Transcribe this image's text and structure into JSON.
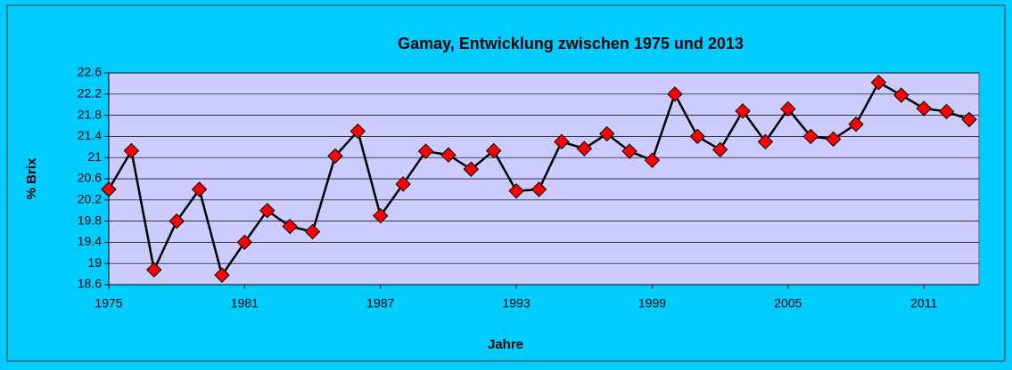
{
  "chart_data": {
    "type": "line",
    "title": "Gamay, Entwicklung zwischen 1975 und 2013",
    "x_label": "Jahre",
    "y_label": "% Brix",
    "x": [
      1975,
      1976,
      1977,
      1978,
      1979,
      1980,
      1981,
      1982,
      1983,
      1984,
      1985,
      1986,
      1987,
      1988,
      1989,
      1990,
      1991,
      1992,
      1993,
      1994,
      1995,
      1996,
      1997,
      1998,
      1999,
      2000,
      2001,
      2002,
      2003,
      2004,
      2005,
      2006,
      2007,
      2008,
      2009,
      2010,
      2011,
      2012,
      2013
    ],
    "series": [
      {
        "name": "Gamay",
        "color": "#000000",
        "marker_color": "#ff0000",
        "values": [
          20.4,
          21.13,
          18.88,
          19.8,
          20.4,
          18.78,
          19.4,
          20.0,
          19.7,
          19.6,
          21.03,
          21.5,
          19.9,
          20.5,
          21.12,
          21.05,
          20.78,
          21.13,
          20.37,
          20.4,
          21.3,
          21.17,
          21.45,
          21.12,
          20.95,
          22.2,
          21.4,
          21.15,
          21.88,
          21.3,
          21.92,
          21.4,
          21.35,
          21.63,
          22.42,
          22.18,
          21.93,
          21.87,
          21.72
        ]
      }
    ],
    "xlim": [
      1975,
      2013
    ],
    "xticks": [
      1975,
      1981,
      1987,
      1993,
      1999,
      2005,
      2011
    ],
    "ylim": [
      18.6,
      22.6
    ],
    "yticks": [
      18.6,
      19,
      19.4,
      19.8,
      20.2,
      20.6,
      21,
      21.4,
      21.8,
      22.2,
      22.6
    ],
    "grid": true
  }
}
